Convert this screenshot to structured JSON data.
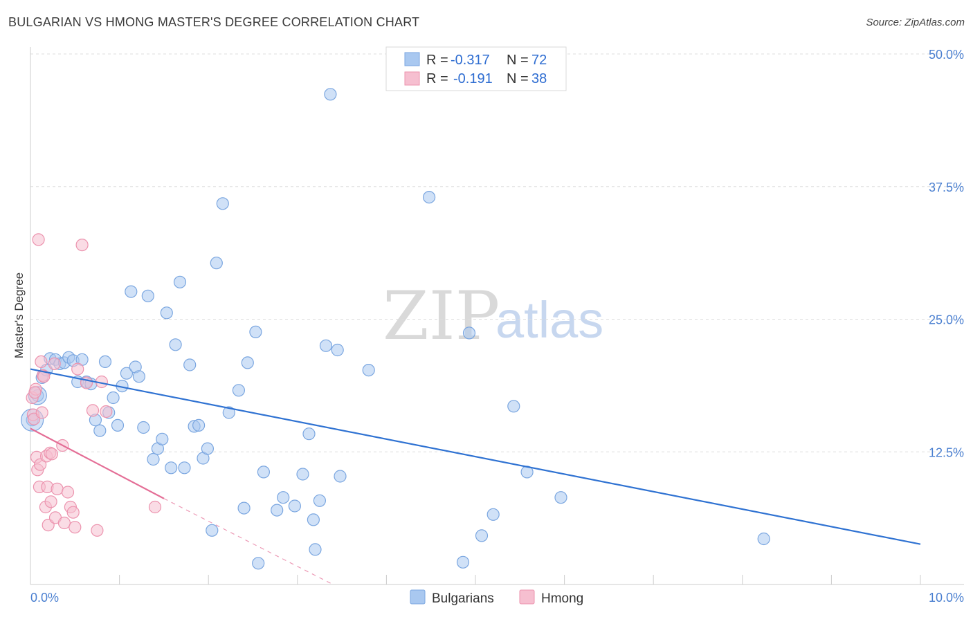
{
  "title": "BULGARIAN VS HMONG MASTER'S DEGREE CORRELATION CHART",
  "source": "Source: ZipAtlas.com",
  "watermark": {
    "part1": "ZIP",
    "part2": "atlas"
  },
  "colors": {
    "blue_fill": "#a9c8f0",
    "blue_stroke": "#7aa6e0",
    "blue_line": "#2f72d2",
    "pink_fill": "#f6bfd0",
    "pink_stroke": "#ec93ae",
    "pink_line": "#e46e96",
    "grid": "#dddddd",
    "axis_text": "#4a7fd0"
  },
  "legend": {
    "rows": [
      {
        "r_label": "R =",
        "r_value": "-0.317",
        "n_label": "N =",
        "n_value": "72"
      },
      {
        "r_label": "R =",
        "r_value": "-0.191",
        "n_label": "N =",
        "n_value": "38"
      }
    ]
  },
  "chart_data": {
    "type": "scatter",
    "title": "BULGARIAN VS HMONG MASTER'S DEGREE CORRELATION CHART",
    "xlabel": "",
    "ylabel": "Master's Degree",
    "xlim": [
      0,
      10
    ],
    "ylim": [
      0,
      50
    ],
    "x_tick_labels": [
      "0.0%",
      "10.0%"
    ],
    "y_ticks": [
      12.5,
      25.0,
      37.5,
      50.0
    ],
    "y_tick_labels": [
      "12.5%",
      "25.0%",
      "37.5%",
      "50.0%"
    ],
    "grid": true,
    "series": [
      {
        "name": "Bulgarians",
        "r": -0.317,
        "n": 72,
        "trend": {
          "x": [
            0,
            10
          ],
          "y": [
            20.3,
            3.8
          ]
        },
        "points": [
          [
            0.08,
            17.8
          ],
          [
            0.02,
            15.5
          ],
          [
            0.13,
            19.5
          ],
          [
            0.18,
            20.2
          ],
          [
            0.22,
            21.3
          ],
          [
            0.28,
            21.2
          ],
          [
            0.33,
            20.8
          ],
          [
            0.38,
            20.9
          ],
          [
            0.43,
            21.4
          ],
          [
            0.48,
            21.1
          ],
          [
            0.58,
            21.2
          ],
          [
            0.53,
            19.1
          ],
          [
            0.63,
            19.1
          ],
          [
            0.68,
            18.9
          ],
          [
            0.73,
            15.5
          ],
          [
            0.78,
            14.5
          ],
          [
            0.84,
            21.0
          ],
          [
            0.88,
            16.2
          ],
          [
            0.93,
            17.6
          ],
          [
            0.98,
            15.0
          ],
          [
            1.03,
            18.7
          ],
          [
            1.08,
            19.9
          ],
          [
            1.13,
            27.6
          ],
          [
            1.18,
            20.5
          ],
          [
            1.22,
            19.6
          ],
          [
            1.27,
            14.8
          ],
          [
            1.32,
            27.2
          ],
          [
            1.38,
            11.8
          ],
          [
            1.43,
            12.8
          ],
          [
            1.48,
            13.7
          ],
          [
            1.53,
            25.6
          ],
          [
            1.58,
            11.0
          ],
          [
            1.63,
            22.6
          ],
          [
            1.68,
            28.5
          ],
          [
            1.73,
            11.0
          ],
          [
            1.79,
            20.7
          ],
          [
            1.84,
            14.9
          ],
          [
            1.89,
            15.0
          ],
          [
            1.94,
            11.9
          ],
          [
            1.99,
            12.8
          ],
          [
            2.04,
            5.1
          ],
          [
            2.09,
            30.3
          ],
          [
            2.16,
            35.9
          ],
          [
            2.23,
            16.2
          ],
          [
            2.34,
            18.3
          ],
          [
            2.4,
            7.2
          ],
          [
            2.44,
            20.9
          ],
          [
            2.53,
            23.8
          ],
          [
            2.56,
            2.0
          ],
          [
            2.62,
            10.6
          ],
          [
            2.77,
            7.0
          ],
          [
            2.84,
            8.2
          ],
          [
            2.97,
            7.4
          ],
          [
            3.06,
            10.4
          ],
          [
            3.13,
            14.2
          ],
          [
            3.18,
            6.1
          ],
          [
            3.2,
            3.3
          ],
          [
            3.25,
            7.9
          ],
          [
            3.32,
            22.5
          ],
          [
            3.37,
            46.2
          ],
          [
            3.45,
            22.1
          ],
          [
            3.48,
            10.2
          ],
          [
            3.8,
            20.2
          ],
          [
            4.48,
            36.5
          ],
          [
            4.86,
            2.1
          ],
          [
            4.93,
            23.7
          ],
          [
            5.07,
            4.6
          ],
          [
            5.2,
            6.6
          ],
          [
            5.43,
            16.8
          ],
          [
            5.58,
            10.6
          ],
          [
            5.96,
            8.2
          ],
          [
            8.24,
            4.3
          ]
        ]
      },
      {
        "name": "Hmong",
        "r": -0.191,
        "n": 38,
        "trend": {
          "x": [
            0,
            1.5
          ],
          "y": [
            14.7,
            8.1
          ]
        },
        "trend_dashed": {
          "x": [
            1.5,
            3.4
          ],
          "y": [
            8.1,
            0.0
          ]
        },
        "points": [
          [
            0.02,
            17.6
          ],
          [
            0.03,
            16.0
          ],
          [
            0.04,
            15.6
          ],
          [
            0.06,
            18.4
          ],
          [
            0.07,
            12.0
          ],
          [
            0.08,
            10.8
          ],
          [
            0.09,
            32.5
          ],
          [
            0.1,
            9.2
          ],
          [
            0.11,
            11.3
          ],
          [
            0.12,
            21.0
          ],
          [
            0.13,
            16.2
          ],
          [
            0.14,
            19.7
          ],
          [
            0.15,
            19.6
          ],
          [
            0.17,
            7.3
          ],
          [
            0.18,
            12.1
          ],
          [
            0.19,
            9.2
          ],
          [
            0.2,
            5.6
          ],
          [
            0.22,
            12.4
          ],
          [
            0.23,
            7.8
          ],
          [
            0.24,
            12.3
          ],
          [
            0.27,
            20.8
          ],
          [
            0.28,
            6.3
          ],
          [
            0.3,
            9.0
          ],
          [
            0.36,
            13.1
          ],
          [
            0.38,
            5.8
          ],
          [
            0.42,
            8.7
          ],
          [
            0.45,
            7.3
          ],
          [
            0.48,
            6.8
          ],
          [
            0.5,
            5.4
          ],
          [
            0.53,
            20.3
          ],
          [
            0.58,
            32.0
          ],
          [
            0.63,
            19.0
          ],
          [
            0.7,
            16.4
          ],
          [
            0.75,
            5.1
          ],
          [
            0.8,
            19.1
          ],
          [
            0.85,
            16.3
          ],
          [
            1.4,
            7.3
          ],
          [
            0.05,
            18.1
          ]
        ]
      }
    ]
  }
}
